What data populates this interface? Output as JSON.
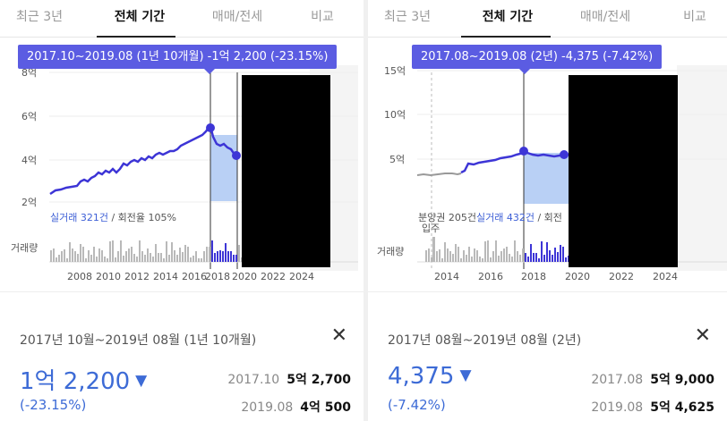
{
  "colors": {
    "accent": "#5b5ce2",
    "line": "#3d35d6",
    "highlight_fill": "#b9d0f5",
    "value_blue": "#3d6bd6",
    "volume_gray": "#b9b9b9"
  },
  "left": {
    "tabs": [
      "최근 3년",
      "전체 기간",
      "매매/전세",
      "비교"
    ],
    "active_tab": "전체 기간",
    "tooltip": "2017.10~2019.08 (1년 10개월)  -1억 2,200 (-23.15%)",
    "y_ticks": [
      "8억",
      "6억",
      "4억",
      "2억"
    ],
    "x_ticks": [
      "2008",
      "2010",
      "2012",
      "2014",
      "2016",
      "2018",
      "2020",
      "2022",
      "2024"
    ],
    "trade_count": "실거래 321건",
    "turnover": " / 회전율 105%",
    "volume_label": "거래량",
    "info": {
      "range": "2017년 10월~2019년 08월 (1년 10개월)",
      "change": "1억 2,200",
      "arrow": "▼",
      "pct": "(-23.15%)",
      "start_date": "2017.10",
      "start_value": "5억 2,700",
      "end_date": "2019.08",
      "end_value": "4억 500",
      "close": "✕"
    }
  },
  "right": {
    "tabs": [
      "최근 3년",
      "전체 기간",
      "매매/전세",
      "비교"
    ],
    "active_tab": "전체 기간",
    "tooltip": "2017.08~2019.08 (2년)  -4,375 (-7.42%)",
    "y_ticks": [
      "15억",
      "10억",
      "5억"
    ],
    "x_ticks": [
      "2014",
      "2016",
      "2018",
      "2020",
      "2022",
      "2024"
    ],
    "presale": "분양권 205건",
    "trade_count": "실거래 432건",
    "turnover": " / 회전",
    "move_in": "입주",
    "volume_label": "거래량",
    "info": {
      "range": "2017년 08월~2019년 08월 (2년)",
      "change": "4,375",
      "arrow": "▼",
      "pct": "(-7.42%)",
      "start_date": "2017.08",
      "start_value": "5억 9,000",
      "end_date": "2019.08",
      "end_value": "5억 4,625",
      "close": "✕"
    }
  }
}
